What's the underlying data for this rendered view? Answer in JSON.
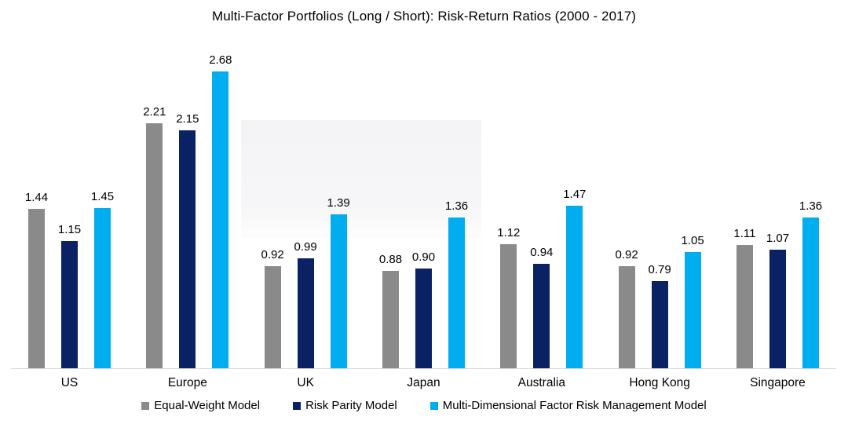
{
  "chart_data": {
    "type": "bar",
    "title": "Multi-Factor Portfolios (Long / Short): Risk-Return Ratios (2000 - 2017)",
    "categories": [
      "US",
      "Europe",
      "UK",
      "Japan",
      "Australia",
      "Hong Kong",
      "Singapore"
    ],
    "series": [
      {
        "name": "Equal-Weight Model",
        "color": "#8a8a8a",
        "values": [
          1.44,
          2.21,
          0.92,
          0.88,
          1.12,
          0.92,
          1.11
        ]
      },
      {
        "name": "Risk Parity Model",
        "color": "#0a2164",
        "values": [
          1.15,
          2.15,
          0.99,
          0.9,
          0.94,
          0.79,
          1.07
        ]
      },
      {
        "name": "Multi-Dimensional Factor Risk Management Model",
        "color": "#00aeef",
        "values": [
          1.45,
          2.68,
          1.39,
          1.36,
          1.47,
          1.05,
          1.36
        ]
      }
    ],
    "value_label_decimals": 2,
    "ylim": [
      0,
      2.8
    ],
    "grid": false,
    "legend_position": "bottom",
    "axis_line_color": "#d9d9d9"
  }
}
